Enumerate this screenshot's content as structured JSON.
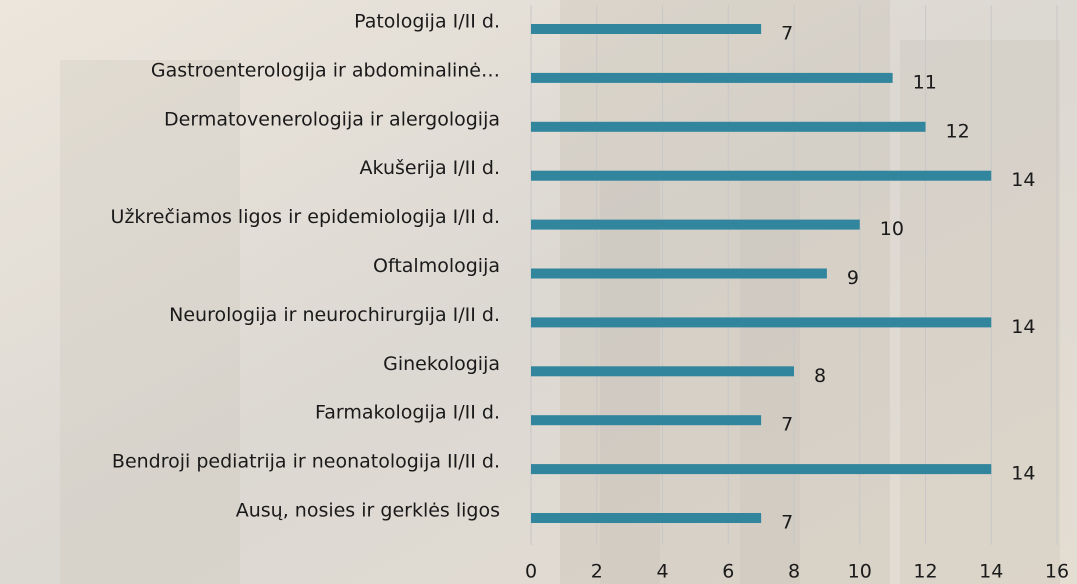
{
  "chart_data": {
    "type": "bar",
    "orientation": "horizontal",
    "categories": [
      "Patologija I/II d.",
      "Gastroenterologija ir abdominalinė…",
      "Dermatovenerologija ir alergologija",
      "Akušerija I/II d.",
      "Užkrečiamos ligos ir epidemiologija I/II d.",
      "Oftalmologija",
      "Neurologija ir neurochirurgija I/II d.",
      "Ginekologija",
      "Farmakologija I/II d.",
      "Bendroji pediatrija ir neonatologija II/II d.",
      "Ausų, nosies ir gerklės ligos"
    ],
    "values": [
      7,
      11,
      12,
      14,
      10,
      9,
      14,
      8,
      7,
      14,
      7
    ],
    "color": "#31859c",
    "xlim": [
      0,
      16
    ],
    "xticks": [
      0,
      2,
      4,
      6,
      8,
      10,
      12,
      14,
      16
    ],
    "grid": true
  }
}
